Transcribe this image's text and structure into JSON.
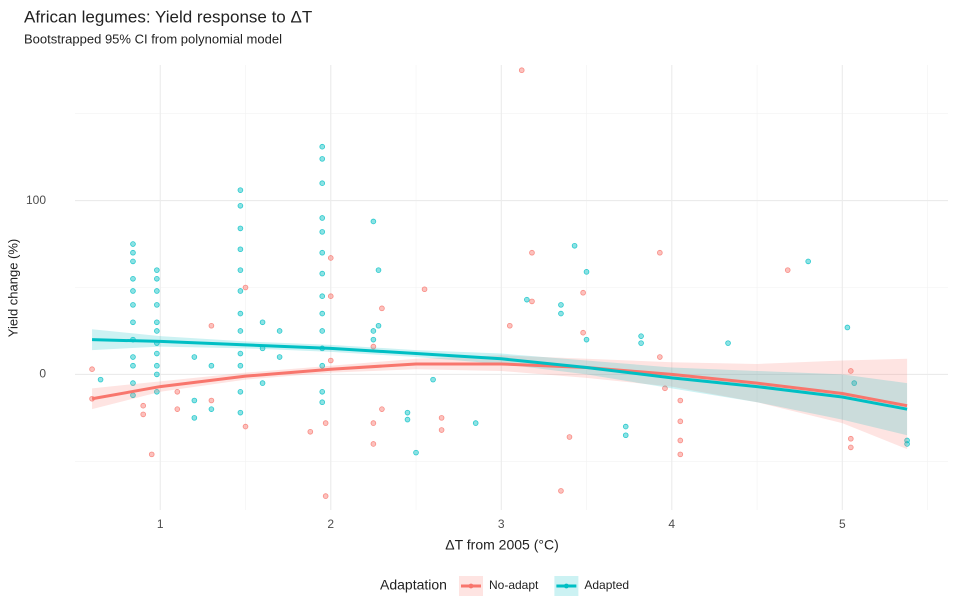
{
  "chart_data": {
    "type": "scatter_smooth",
    "title": "African legumes: Yield response to ΔT",
    "subtitle": "Bootstrapped 95% CI from polynomial model",
    "x_label": "ΔT from 2005 (°C)",
    "y_label": "Yield change (%)",
    "xlim": [
      0.5,
      5.62
    ],
    "ylim": [
      -78,
      178
    ],
    "xticks": [
      1,
      2,
      3,
      4,
      5
    ],
    "yticks": [
      0,
      100
    ],
    "x_minor_grid": [
      1.5,
      2.5,
      3.5,
      4.5,
      5.5
    ],
    "y_minor_grid": [
      -50,
      50,
      150
    ],
    "grid": true,
    "legend_title": "Adaptation",
    "legend_position": "bottom",
    "series": [
      {
        "name": "No-adapt",
        "color": "#F8766D",
        "x": [
          3.12,
          0.6,
          0.6,
          0.95,
          0.9,
          0.9,
          1.1,
          1.1,
          1.3,
          1.3,
          1.5,
          1.5,
          1.88,
          1.97,
          1.97,
          2.0,
          2.0,
          2.0,
          2.25,
          2.25,
          2.25,
          2.3,
          2.3,
          2.55,
          2.65,
          2.65,
          3.05,
          3.18,
          3.18,
          3.35,
          3.4,
          3.48,
          3.48,
          3.93,
          3.93,
          3.96,
          4.05,
          4.05,
          4.05,
          4.05,
          4.68,
          5.05,
          5.05,
          5.05
        ],
        "values": [
          175,
          3,
          -14,
          -46,
          -18,
          -23,
          -10,
          -20,
          28,
          -15,
          -30,
          50,
          -33,
          -70,
          -28,
          67,
          45,
          8,
          16,
          -28,
          -40,
          38,
          -20,
          49,
          -25,
          -32,
          28,
          70,
          42,
          -67,
          -36,
          47,
          24,
          70,
          10,
          -8,
          -15,
          -27,
          -38,
          -46,
          60,
          2,
          -37,
          -42
        ],
        "fit": {
          "x": [
            0.6,
            1.0,
            1.5,
            2.0,
            2.5,
            3.0,
            3.5,
            4.0,
            4.5,
            5.0,
            5.38
          ],
          "values": [
            -14,
            -7,
            -1,
            3,
            6,
            6,
            4,
            0,
            -5,
            -11,
            -18
          ],
          "lower": [
            -20,
            -10,
            -3,
            1,
            3,
            2,
            -2,
            -7,
            -16,
            -28,
            -43
          ],
          "upper": [
            -8,
            -4,
            1,
            5,
            9,
            11,
            9,
            7,
            6,
            8,
            9
          ]
        }
      },
      {
        "name": "Adapted",
        "color": "#00BFC4",
        "x": [
          0.84,
          0.84,
          0.84,
          0.84,
          0.84,
          0.84,
          0.84,
          0.84,
          0.84,
          0.84,
          0.84,
          0.84,
          0.98,
          0.98,
          0.98,
          0.98,
          0.98,
          0.98,
          0.98,
          0.98,
          0.98,
          0.98,
          0.98,
          1.47,
          1.47,
          1.47,
          1.47,
          1.47,
          1.47,
          1.47,
          1.47,
          1.47,
          1.47,
          1.47,
          1.47,
          1.95,
          1.95,
          1.95,
          1.95,
          1.95,
          1.95,
          1.95,
          1.95,
          1.95,
          1.95,
          1.95,
          1.95,
          1.95,
          1.95,
          2.25,
          2.25,
          2.25,
          2.28,
          2.28,
          2.45,
          2.45,
          2.5,
          2.6,
          2.85,
          3.15,
          3.35,
          3.35,
          3.43,
          3.5,
          3.5,
          3.73,
          3.73,
          3.82,
          3.82,
          4.33,
          4.8,
          5.03,
          5.07,
          5.38,
          5.38,
          1.2,
          1.2,
          1.2,
          1.6,
          1.6,
          1.6,
          1.7,
          1.7,
          0.65,
          1.3,
          1.3
        ],
        "values": [
          75,
          70,
          65,
          55,
          48,
          40,
          30,
          20,
          10,
          5,
          -5,
          -12,
          60,
          55,
          48,
          40,
          30,
          25,
          18,
          12,
          5,
          0,
          -10,
          106,
          97,
          84,
          72,
          60,
          48,
          35,
          25,
          12,
          5,
          -10,
          -22,
          131,
          124,
          110,
          90,
          82,
          70,
          58,
          45,
          35,
          25,
          15,
          5,
          -10,
          -16,
          88,
          25,
          20,
          60,
          28,
          -22,
          -26,
          -45,
          -3,
          -28,
          43,
          40,
          35,
          74,
          59,
          20,
          -30,
          -35,
          22,
          18,
          18,
          65,
          27,
          -5,
          -38,
          -40,
          10,
          -15,
          -25,
          30,
          15,
          -5,
          25,
          10,
          -3,
          -20,
          5
        ],
        "fit": {
          "x": [
            0.6,
            1.0,
            1.5,
            2.0,
            2.5,
            3.0,
            3.5,
            4.0,
            4.5,
            5.0,
            5.38
          ],
          "values": [
            20,
            19,
            17,
            15,
            12,
            9,
            4,
            -2,
            -7,
            -13,
            -20
          ],
          "lower": [
            14,
            16,
            15,
            13,
            10,
            6,
            0,
            -8,
            -16,
            -26,
            -35
          ],
          "upper": [
            26,
            22,
            19,
            17,
            14,
            12,
            8,
            4,
            2,
            0,
            -5
          ]
        }
      }
    ]
  }
}
